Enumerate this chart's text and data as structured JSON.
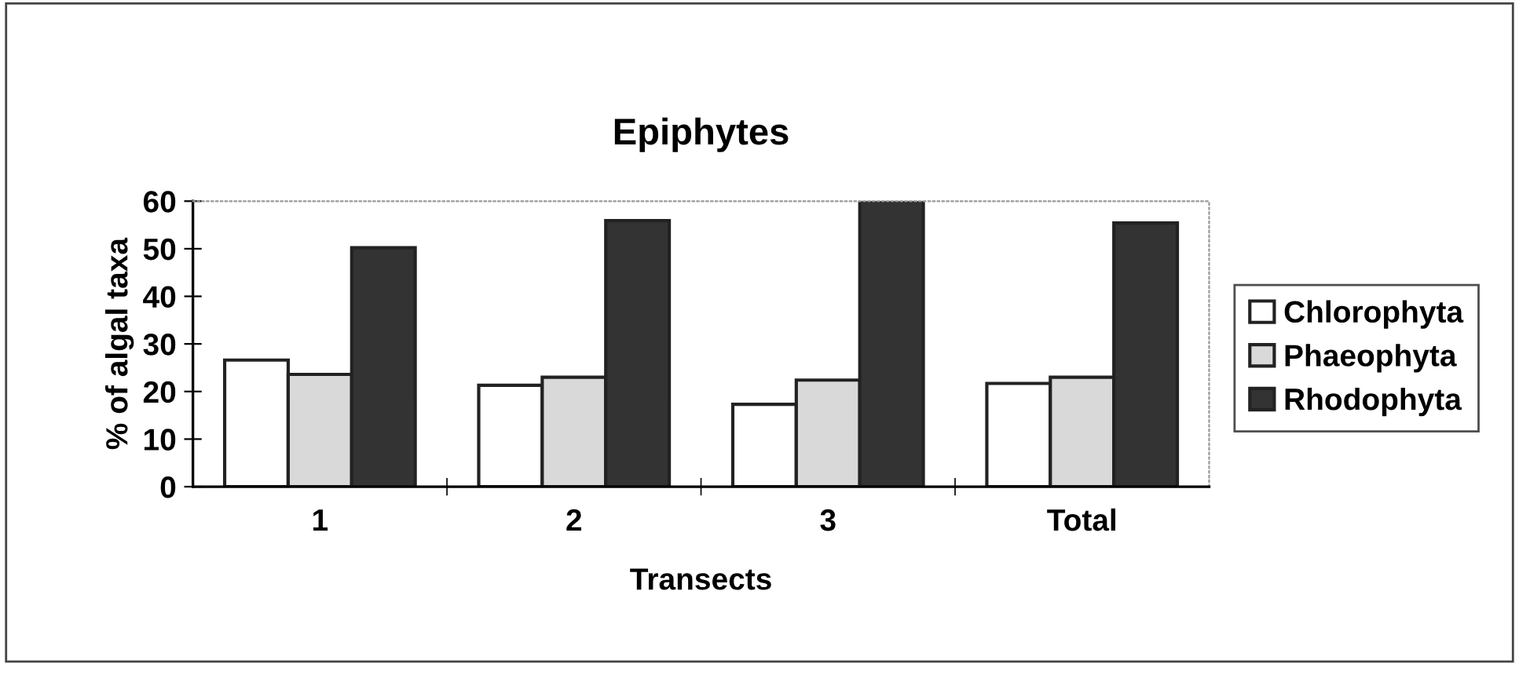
{
  "chart_data": {
    "type": "bar",
    "title": "Epiphytes",
    "xlabel": "Transects",
    "ylabel": "% of algal taxa",
    "categories": [
      "1",
      "2",
      "3",
      "Total"
    ],
    "series": [
      {
        "name": "Chlorophyta",
        "color": "#ffffff",
        "values": [
          26.6,
          21.3,
          17.3,
          21.7
        ]
      },
      {
        "name": "Phaeophyta",
        "color": "#d9d9d9",
        "values": [
          23.6,
          23.0,
          22.4,
          23.0
        ]
      },
      {
        "name": "Rhodophyta",
        "color": "#333333",
        "values": [
          50.2,
          55.9,
          60,
          55.4
        ]
      }
    ],
    "ylim": [
      0,
      60
    ],
    "yticks": [
      0,
      10,
      20,
      30,
      40,
      50,
      60
    ],
    "grid": false,
    "legend": "right"
  }
}
